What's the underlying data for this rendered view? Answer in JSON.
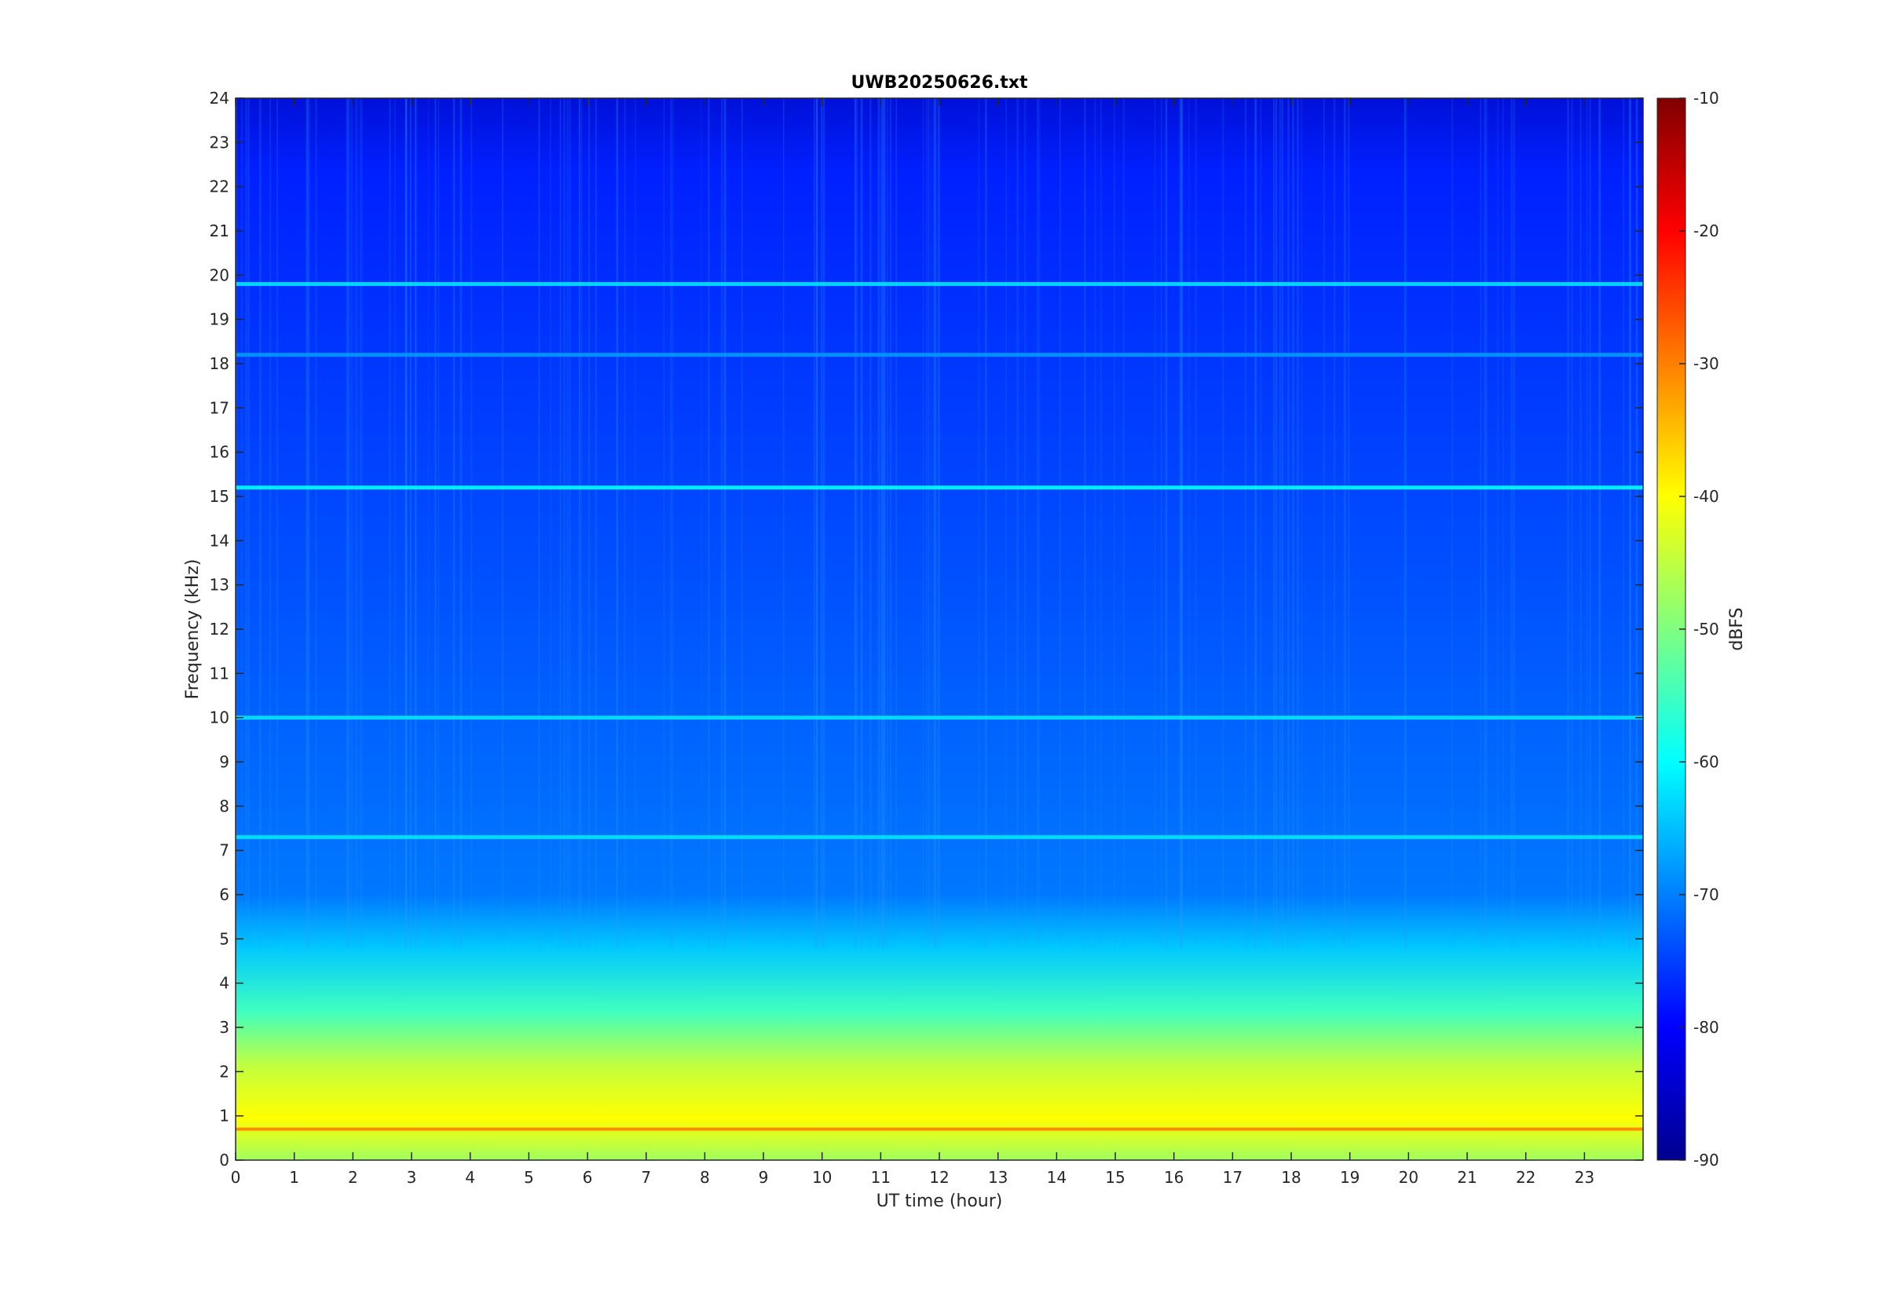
{
  "chart_data": {
    "type": "heatmap",
    "title": "UWB20250626.txt",
    "xlabel": "UT time (hour)",
    "ylabel": "Frequency (kHz)",
    "xlim": [
      0,
      24
    ],
    "ylim": [
      0,
      24
    ],
    "x_ticks": [
      "0",
      "1",
      "2",
      "3",
      "4",
      "5",
      "6",
      "7",
      "8",
      "9",
      "10",
      "11",
      "12",
      "13",
      "14",
      "15",
      "16",
      "17",
      "18",
      "19",
      "20",
      "21",
      "22",
      "23"
    ],
    "y_ticks": [
      "0",
      "1",
      "2",
      "3",
      "4",
      "5",
      "6",
      "7",
      "8",
      "9",
      "10",
      "11",
      "12",
      "13",
      "14",
      "15",
      "16",
      "17",
      "18",
      "19",
      "20",
      "21",
      "22",
      "23",
      "24"
    ],
    "colorbar": {
      "label": "dBFS",
      "range": [
        -90,
        -10
      ],
      "ticks": [
        "-10",
        "-20",
        "-30",
        "-40",
        "-50",
        "-60",
        "-70",
        "-80",
        "-90"
      ],
      "colormap": "jet"
    },
    "features": [
      {
        "kind": "band",
        "freq_khz": 19.8,
        "level_dbfs": -62
      },
      {
        "kind": "band",
        "freq_khz": 18.2,
        "level_dbfs": -68
      },
      {
        "kind": "band",
        "freq_khz": 15.2,
        "level_dbfs": -60
      },
      {
        "kind": "band",
        "freq_khz": 10.0,
        "level_dbfs": -62
      },
      {
        "kind": "band",
        "freq_khz": 7.3,
        "level_dbfs": -62
      },
      {
        "kind": "band",
        "freq_khz": 0.7,
        "level_dbfs": -30
      }
    ]
  }
}
